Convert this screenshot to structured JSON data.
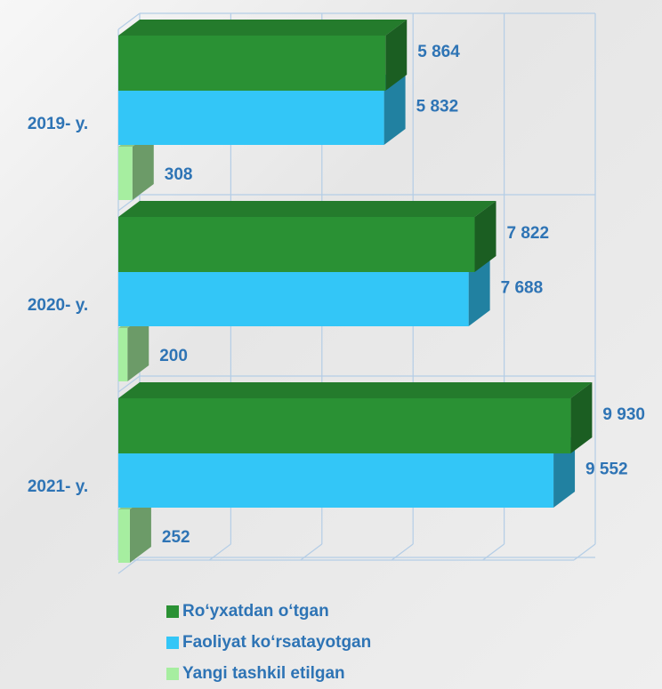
{
  "chart_data": {
    "type": "bar3d_horizontal",
    "categories": [
      "2019- y.",
      "2020- y.",
      "2021- y."
    ],
    "series": [
      {
        "name": "Ro‘yxatdan o‘tgan",
        "color": "#2a9134",
        "values": [
          5864,
          7822,
          9930
        ],
        "value_labels": [
          "5 864",
          "7 822",
          "9 930"
        ]
      },
      {
        "name": "Faoliyat ko‘rsatayotgan",
        "color": "#33c6f7",
        "values": [
          5832,
          7688,
          9552
        ],
        "value_labels": [
          "5 832",
          "7 688",
          "9 552"
        ]
      },
      {
        "name": "Yangi tashkil etilgan",
        "color": "#a6eea0",
        "values": [
          308,
          200,
          252
        ],
        "value_labels": [
          "308",
          "200",
          "252"
        ]
      }
    ],
    "xlim": [
      0,
      10000
    ],
    "xticks": [
      0,
      2000,
      4000,
      6000,
      8000,
      10000
    ],
    "grid": true,
    "legend": "bottom"
  }
}
